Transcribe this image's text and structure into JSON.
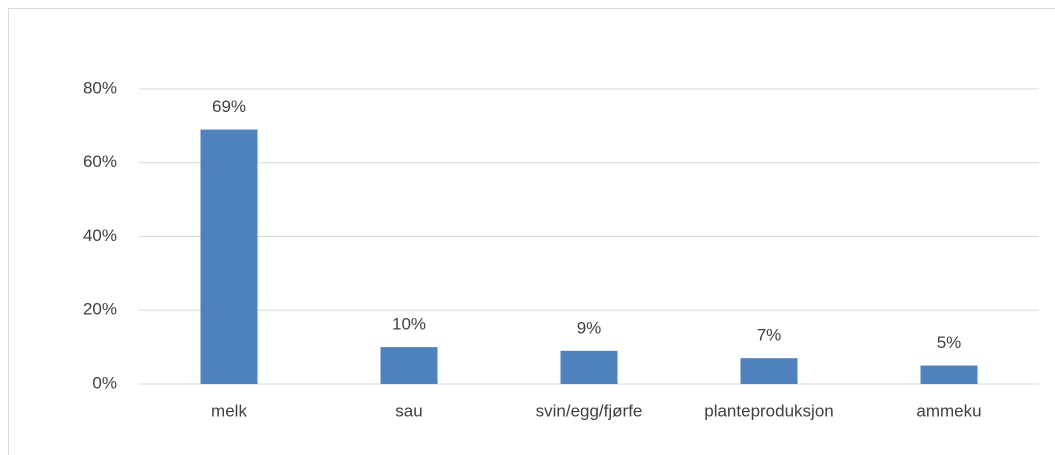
{
  "chart_data": {
    "type": "bar",
    "categories": [
      "melk",
      "sau",
      "svin/egg/fjørfe",
      "planteproduksjon",
      "ammeku"
    ],
    "values": [
      69,
      10,
      9,
      7,
      5
    ],
    "value_labels": [
      "69%",
      "10%",
      "9%",
      "7%",
      "5%"
    ],
    "color": "#4f81bd",
    "ylim": [
      0,
      80
    ],
    "yticks": [
      {
        "value": 0,
        "label": "0%"
      },
      {
        "value": 20,
        "label": "20%"
      },
      {
        "value": 40,
        "label": "40%"
      },
      {
        "value": 60,
        "label": "60%"
      },
      {
        "value": 80,
        "label": "80%"
      }
    ],
    "grid": true
  }
}
